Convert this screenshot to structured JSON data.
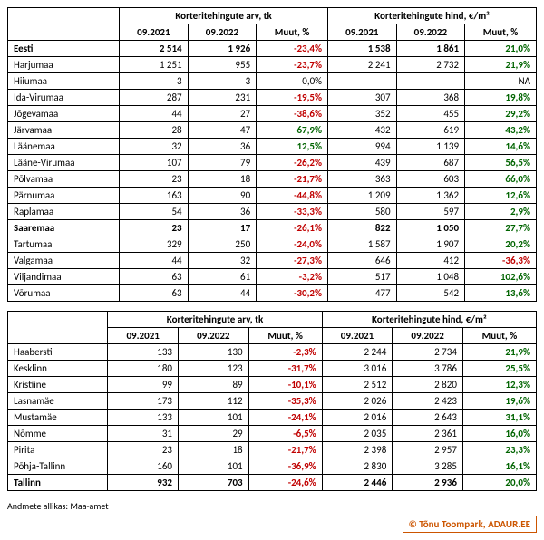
{
  "columns": {
    "group1": "Korteritehingute arv, tk",
    "group2": "Korteritehingute hind, €/m²",
    "c1": "09.2021",
    "c2": "09.2022",
    "c3": "Muut, %",
    "c4": "09.2021",
    "c5": "09.2022",
    "c6": "Muut, %"
  },
  "table1": [
    {
      "name": "Eesti",
      "bold": true,
      "v": [
        "2 514",
        "1 926",
        "-23,4%",
        "1 538",
        "1 861",
        "21,0%"
      ],
      "cls": [
        "",
        "",
        "neg",
        "",
        "",
        "pos"
      ]
    },
    {
      "name": "Harjumaa",
      "v": [
        "1 251",
        "955",
        "-23,7%",
        "2 241",
        "2 732",
        "21,9%"
      ],
      "cls": [
        "",
        "",
        "neg",
        "",
        "",
        "pos"
      ]
    },
    {
      "name": "Hiiumaa",
      "v": [
        "3",
        "3",
        "0,0%",
        "",
        "",
        "NA"
      ],
      "cls": [
        "",
        "",
        "neutral",
        "",
        "",
        "neutral"
      ]
    },
    {
      "name": "Ida-Virumaa",
      "v": [
        "287",
        "231",
        "-19,5%",
        "307",
        "368",
        "19,8%"
      ],
      "cls": [
        "",
        "",
        "neg",
        "",
        "",
        "pos"
      ]
    },
    {
      "name": "Jõgevamaa",
      "v": [
        "44",
        "27",
        "-38,6%",
        "352",
        "455",
        "29,2%"
      ],
      "cls": [
        "",
        "",
        "neg",
        "",
        "",
        "pos"
      ]
    },
    {
      "name": "Järvamaa",
      "v": [
        "28",
        "47",
        "67,9%",
        "432",
        "619",
        "43,2%"
      ],
      "cls": [
        "",
        "",
        "pos",
        "",
        "",
        "pos"
      ]
    },
    {
      "name": "Läänemaa",
      "v": [
        "32",
        "36",
        "12,5%",
        "994",
        "1 139",
        "14,6%"
      ],
      "cls": [
        "",
        "",
        "pos",
        "",
        "",
        "pos"
      ]
    },
    {
      "name": "Lääne-Virumaa",
      "v": [
        "107",
        "79",
        "-26,2%",
        "439",
        "687",
        "56,5%"
      ],
      "cls": [
        "",
        "",
        "neg",
        "",
        "",
        "pos"
      ]
    },
    {
      "name": "Põlvamaa",
      "v": [
        "23",
        "18",
        "-21,7%",
        "363",
        "603",
        "66,0%"
      ],
      "cls": [
        "",
        "",
        "neg",
        "",
        "",
        "pos"
      ]
    },
    {
      "name": "Pärnumaa",
      "v": [
        "163",
        "90",
        "-44,8%",
        "1 209",
        "1 362",
        "12,6%"
      ],
      "cls": [
        "",
        "",
        "neg",
        "",
        "",
        "pos"
      ]
    },
    {
      "name": "Raplamaa",
      "v": [
        "54",
        "36",
        "-33,3%",
        "580",
        "597",
        "2,9%"
      ],
      "cls": [
        "",
        "",
        "neg",
        "",
        "",
        "pos"
      ]
    },
    {
      "name": "Saaremaa",
      "bold": true,
      "v": [
        "23",
        "17",
        "-26,1%",
        "822",
        "1 050",
        "27,7%"
      ],
      "cls": [
        "",
        "",
        "neg",
        "",
        "",
        "pos"
      ]
    },
    {
      "name": "Tartumaa",
      "v": [
        "329",
        "250",
        "-24,0%",
        "1 587",
        "1 907",
        "20,2%"
      ],
      "cls": [
        "",
        "",
        "neg",
        "",
        "",
        "pos"
      ]
    },
    {
      "name": "Valgamaa",
      "v": [
        "44",
        "32",
        "-27,3%",
        "646",
        "412",
        "-36,3%"
      ],
      "cls": [
        "",
        "",
        "neg",
        "",
        "",
        "neg"
      ]
    },
    {
      "name": "Viljandimaa",
      "v": [
        "63",
        "61",
        "-3,2%",
        "517",
        "1 048",
        "102,6%"
      ],
      "cls": [
        "",
        "",
        "neg",
        "",
        "",
        "pos"
      ]
    },
    {
      "name": "Võrumaa",
      "v": [
        "63",
        "44",
        "-30,2%",
        "477",
        "542",
        "13,6%"
      ],
      "cls": [
        "",
        "",
        "neg",
        "",
        "",
        "pos"
      ]
    }
  ],
  "table2": [
    {
      "name": "Haabersti",
      "v": [
        "133",
        "130",
        "-2,3%",
        "2 244",
        "2 734",
        "21,9%"
      ],
      "cls": [
        "",
        "",
        "neg",
        "",
        "",
        "pos"
      ]
    },
    {
      "name": "Kesklinn",
      "v": [
        "180",
        "123",
        "-31,7%",
        "3 016",
        "3 786",
        "25,5%"
      ],
      "cls": [
        "",
        "",
        "neg",
        "",
        "",
        "pos"
      ]
    },
    {
      "name": "Kristiine",
      "v": [
        "99",
        "89",
        "-10,1%",
        "2 512",
        "2 820",
        "12,3%"
      ],
      "cls": [
        "",
        "",
        "neg",
        "",
        "",
        "pos"
      ]
    },
    {
      "name": "Lasnamäe",
      "v": [
        "173",
        "112",
        "-35,3%",
        "2 026",
        "2 423",
        "19,6%"
      ],
      "cls": [
        "",
        "",
        "neg",
        "",
        "",
        "pos"
      ]
    },
    {
      "name": "Mustamäe",
      "v": [
        "133",
        "101",
        "-24,1%",
        "2 016",
        "2 643",
        "31,1%"
      ],
      "cls": [
        "",
        "",
        "neg",
        "",
        "",
        "pos"
      ]
    },
    {
      "name": "Nõmme",
      "v": [
        "31",
        "29",
        "-6,5%",
        "2 035",
        "2 361",
        "16,0%"
      ],
      "cls": [
        "",
        "",
        "neg",
        "",
        "",
        "pos"
      ]
    },
    {
      "name": "Pirita",
      "v": [
        "23",
        "18",
        "-21,7%",
        "2 398",
        "2 957",
        "23,3%"
      ],
      "cls": [
        "",
        "",
        "neg",
        "",
        "",
        "pos"
      ]
    },
    {
      "name": "Põhja-Tallinn",
      "v": [
        "160",
        "101",
        "-36,9%",
        "2 830",
        "3 285",
        "16,1%"
      ],
      "cls": [
        "",
        "",
        "neg",
        "",
        "",
        "pos"
      ]
    },
    {
      "name": "Tallinn",
      "bold": true,
      "v": [
        "932",
        "703",
        "-24,6%",
        "2 446",
        "2 936",
        "20,0%"
      ],
      "cls": [
        "",
        "",
        "neg",
        "",
        "",
        "pos"
      ]
    }
  ],
  "source": "Andmete allikas: Maa-amet",
  "watermark": "Tõnu Toompark, ADAUR.EE"
}
